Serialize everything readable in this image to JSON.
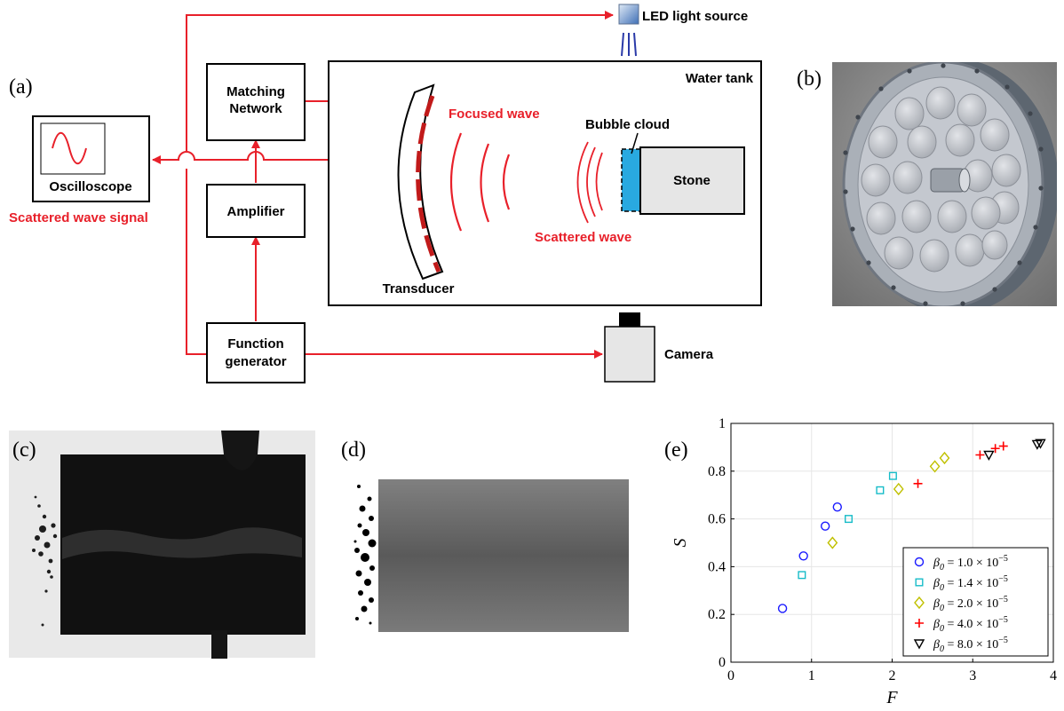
{
  "panels": {
    "a": "(a)",
    "b": "(b)",
    "c": "(c)",
    "d": "(d)",
    "e": "(e)"
  },
  "schematic": {
    "led": "LED light source",
    "matching_network": [
      "Matching",
      "Network"
    ],
    "water_tank": "Water tank",
    "oscilloscope": "Oscilloscope",
    "scattered_signal": "Scattered wave signal",
    "amplifier": "Amplifier",
    "function_generator": [
      "Function",
      "generator"
    ],
    "camera": "Camera",
    "transducer": "Transducer",
    "focused_wave": "Focused wave",
    "bubble_cloud": "Bubble cloud",
    "stone": "Stone",
    "scattered_wave": "Scattered wave"
  },
  "colors": {
    "signal": "#e8202a",
    "bubble": "#29a9e0",
    "stone": "#e6e6e6"
  },
  "chart_data": {
    "type": "scatter",
    "xlabel": "F",
    "ylabel": "S",
    "xlim": [
      0,
      4
    ],
    "ylim": [
      0,
      1
    ],
    "xticks": [
      "0",
      "1",
      "2",
      "3",
      "4"
    ],
    "yticks": [
      "0",
      "0.2",
      "0.4",
      "0.6",
      "0.8",
      "1"
    ],
    "grid": true,
    "legend_position": "bottom-right",
    "series": [
      {
        "name": "β0 = 1.0 × 10^-5",
        "marker": "circle",
        "color": "#1a1aff",
        "points": [
          [
            0.64,
            0.225
          ],
          [
            0.9,
            0.445
          ],
          [
            1.17,
            0.57
          ],
          [
            1.32,
            0.65
          ]
        ]
      },
      {
        "name": "β0 = 1.4 × 10^-5",
        "marker": "square",
        "color": "#17bcc8",
        "points": [
          [
            0.88,
            0.365
          ],
          [
            1.46,
            0.6
          ],
          [
            1.85,
            0.72
          ],
          [
            2.01,
            0.78
          ]
        ]
      },
      {
        "name": "β0 = 2.0 × 10^-5",
        "marker": "diamond",
        "color": "#c0c000",
        "points": [
          [
            1.26,
            0.5
          ],
          [
            2.08,
            0.725
          ],
          [
            2.53,
            0.82
          ],
          [
            2.65,
            0.855
          ]
        ]
      },
      {
        "name": "β0 = 4.0 × 10^-5",
        "marker": "plus",
        "color": "#ff0000",
        "points": [
          [
            2.32,
            0.748
          ],
          [
            3.09,
            0.868
          ],
          [
            3.28,
            0.895
          ],
          [
            3.38,
            0.905
          ]
        ]
      },
      {
        "name": "β0 = 8.0 × 10^-5",
        "marker": "triangle-down",
        "color": "#000000",
        "points": [
          [
            3.2,
            0.868
          ],
          [
            3.8,
            0.913
          ],
          [
            3.84,
            0.917
          ]
        ]
      }
    ],
    "legend_labels": [
      {
        "main": "β",
        "sub": "0",
        "rest": " = 1.0 × 10",
        "sup": "−5"
      },
      {
        "main": "β",
        "sub": "0",
        "rest": " = 1.4 × 10",
        "sup": "−5"
      },
      {
        "main": "β",
        "sub": "0",
        "rest": " = 2.0 × 10",
        "sup": "−5"
      },
      {
        "main": "β",
        "sub": "0",
        "rest": " = 4.0 × 10",
        "sup": "−5"
      },
      {
        "main": "β",
        "sub": "0",
        "rest": " = 8.0 × 10",
        "sup": "−5"
      }
    ]
  }
}
